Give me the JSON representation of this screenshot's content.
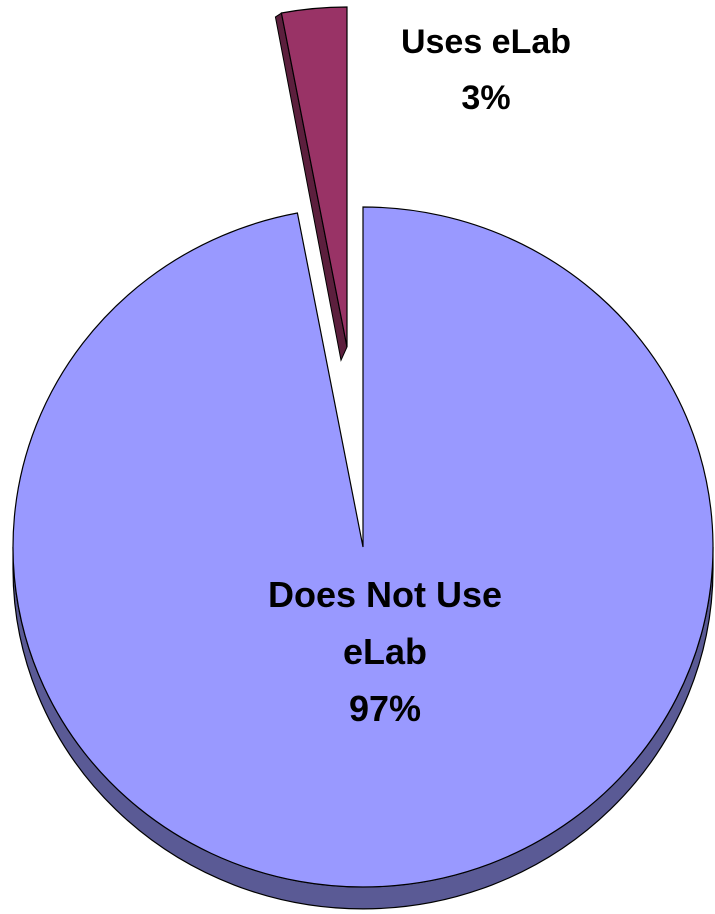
{
  "chart_data": {
    "type": "pie",
    "style": "3d-exploded",
    "slices": [
      {
        "name": "Does Not Use eLab",
        "label_lines": [
          "Does Not Use",
          "eLab"
        ],
        "value": 97,
        "percent_label": "97%",
        "color": "#9999ff",
        "side_color": "#5a5a95"
      },
      {
        "name": "Uses eLab",
        "label_lines": [
          "Uses eLab"
        ],
        "value": 3,
        "percent_label": "3%",
        "color": "#993366",
        "side_color": "#5c1f3d"
      }
    ],
    "legend": "none"
  }
}
